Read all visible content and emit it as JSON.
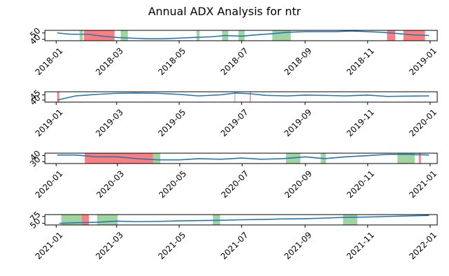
{
  "chart_data": {
    "type": "line",
    "title": "Annual ADX Analysis for ntr",
    "xlabel": "",
    "ylabel": "",
    "grid": false,
    "legend": "none",
    "colors": {
      "line": "#1f77b4",
      "bullish": "#2ca02c",
      "bearish": "#ff0000"
    },
    "panels": [
      {
        "year": 2018,
        "xlim": [
          "2017-12-21",
          "2019-01-08"
        ],
        "ylim": [
          38,
          54
        ],
        "yticks": [
          40,
          50
        ],
        "xticks": [
          "2018-01",
          "2018-03",
          "2018-05",
          "2018-07",
          "2018-09",
          "2018-11",
          "2019-01"
        ],
        "series": [
          {
            "x": [
              "2018-01-02",
              "2018-01-15",
              "2018-02-01",
              "2018-02-15",
              "2018-03-01",
              "2018-03-15",
              "2018-04-01",
              "2018-04-15",
              "2018-05-01",
              "2018-05-15",
              "2018-06-01",
              "2018-06-15",
              "2018-07-01",
              "2018-07-15",
              "2018-08-01",
              "2018-08-15",
              "2018-09-01",
              "2018-09-15",
              "2018-10-01",
              "2018-10-15",
              "2018-11-01",
              "2018-11-15",
              "2018-12-01",
              "2018-12-15",
              "2018-12-31"
            ],
            "y": [
              50,
              48,
              48,
              45,
              43,
              42,
              41,
              41,
              42,
              43,
              44,
              46,
              45,
              47,
              49,
              51,
              52,
              52,
              52,
              53,
              52,
              51,
              49,
              47,
              46
            ]
          }
        ],
        "bands": [
          {
            "start": "2018-01-24",
            "end": "2018-01-27",
            "signal": "bullish"
          },
          {
            "start": "2018-01-28",
            "end": "2018-02-27",
            "signal": "bearish"
          },
          {
            "start": "2018-03-05",
            "end": "2018-03-12",
            "signal": "bullish"
          },
          {
            "start": "2018-05-18",
            "end": "2018-05-21",
            "signal": "bullish"
          },
          {
            "start": "2018-06-12",
            "end": "2018-06-18",
            "signal": "bullish"
          },
          {
            "start": "2018-06-28",
            "end": "2018-07-04",
            "signal": "bullish"
          },
          {
            "start": "2018-07-31",
            "end": "2018-08-18",
            "signal": "bullish"
          },
          {
            "start": "2018-11-20",
            "end": "2018-11-28",
            "signal": "bearish"
          },
          {
            "start": "2018-12-06",
            "end": "2018-12-27",
            "signal": "bearish"
          }
        ]
      },
      {
        "year": 2019,
        "xlim": [
          "2018-12-21",
          "2020-01-08"
        ],
        "ylim": [
          38,
          48
        ],
        "yticks": [
          40,
          45
        ],
        "xticks": [
          "2019-01",
          "2019-03",
          "2019-05",
          "2019-07",
          "2019-09",
          "2019-11",
          "2020-01"
        ],
        "series": [
          {
            "x": [
              "2019-01-02",
              "2019-01-20",
              "2019-02-10",
              "2019-03-01",
              "2019-03-20",
              "2019-04-10",
              "2019-05-01",
              "2019-05-20",
              "2019-06-10",
              "2019-06-25",
              "2019-07-10",
              "2019-07-25",
              "2019-08-15",
              "2019-09-01",
              "2019-09-20",
              "2019-10-10",
              "2019-11-01",
              "2019-11-20",
              "2019-12-10",
              "2019-12-31"
            ],
            "y": [
              40,
              44,
              45.5,
              46.5,
              46.8,
              46.5,
              45.5,
              44,
              45,
              46.8,
              46,
              44.5,
              44,
              44.8,
              44.5,
              44,
              44.8,
              43.5,
              43.8,
              44
            ]
          }
        ],
        "bands": [
          {
            "start": "2019-01-02",
            "end": "2019-01-04",
            "signal": "bearish"
          },
          {
            "start": "2019-06-24",
            "end": "2019-06-25",
            "signal": "bullish"
          },
          {
            "start": "2019-07-09",
            "end": "2019-07-10",
            "signal": "bearish"
          }
        ]
      },
      {
        "year": 2020,
        "xlim": [
          "2019-12-21",
          "2021-01-08"
        ],
        "ylim": [
          27,
          44
        ],
        "yticks": [
          30,
          40
        ],
        "xticks": [
          "2020-01",
          "2020-03",
          "2020-05",
          "2020-07",
          "2020-09",
          "2020-11",
          "2021-01"
        ],
        "series": [
          {
            "x": [
              "2020-01-02",
              "2020-01-20",
              "2020-02-10",
              "2020-03-01",
              "2020-03-20",
              "2020-04-10",
              "2020-05-01",
              "2020-05-20",
              "2020-06-10",
              "2020-07-01",
              "2020-07-20",
              "2020-08-10",
              "2020-09-01",
              "2020-09-20",
              "2020-10-10",
              "2020-11-01",
              "2020-11-20",
              "2020-12-10",
              "2020-12-31"
            ],
            "y": [
              41,
              41,
              38,
              38,
              35,
              33,
              33,
              35,
              34,
              36,
              34,
              35,
              38,
              35,
              38,
              40,
              42,
              42,
              41
            ]
          }
        ],
        "bands": [
          {
            "start": "2020-01-29",
            "end": "2020-04-05",
            "signal": "bearish"
          },
          {
            "start": "2020-04-05",
            "end": "2020-04-12",
            "signal": "bullish"
          },
          {
            "start": "2020-08-13",
            "end": "2020-08-27",
            "signal": "bullish"
          },
          {
            "start": "2020-09-16",
            "end": "2020-09-21",
            "signal": "bullish"
          },
          {
            "start": "2020-11-30",
            "end": "2020-12-17",
            "signal": "bullish"
          },
          {
            "start": "2020-12-21",
            "end": "2020-12-23",
            "signal": "bearish"
          }
        ]
      },
      {
        "year": 2021,
        "xlim": [
          "2020-12-21",
          "2022-01-08"
        ],
        "ylim": [
          44,
          82
        ],
        "yticks": [
          50,
          75
        ],
        "xticks": [
          "2021-01",
          "2021-03",
          "2021-05",
          "2021-07",
          "2021-09",
          "2021-11",
          "2022-01"
        ],
        "series": [
          {
            "x": [
              "2021-01-04",
              "2021-01-20",
              "2021-02-10",
              "2021-03-01",
              "2021-03-20",
              "2021-04-10",
              "2021-05-01",
              "2021-05-20",
              "2021-06-10",
              "2021-07-01",
              "2021-07-20",
              "2021-08-10",
              "2021-09-01",
              "2021-09-20",
              "2021-10-10",
              "2021-11-01",
              "2021-11-20",
              "2021-12-10",
              "2021-12-31"
            ],
            "y": [
              50,
              52,
              54,
              58,
              56,
              57,
              59,
              60,
              61,
              63,
              64,
              66,
              67,
              69,
              72,
              73,
              75,
              77,
              79
            ]
          }
        ],
        "bands": [
          {
            "start": "2021-01-06",
            "end": "2021-01-26",
            "signal": "bullish"
          },
          {
            "start": "2021-01-26",
            "end": "2021-02-02",
            "signal": "bearish"
          },
          {
            "start": "2021-02-10",
            "end": "2021-03-02",
            "signal": "bullish"
          },
          {
            "start": "2021-06-03",
            "end": "2021-06-10",
            "signal": "bullish"
          },
          {
            "start": "2021-10-08",
            "end": "2021-10-22",
            "signal": "bullish"
          }
        ]
      }
    ]
  }
}
